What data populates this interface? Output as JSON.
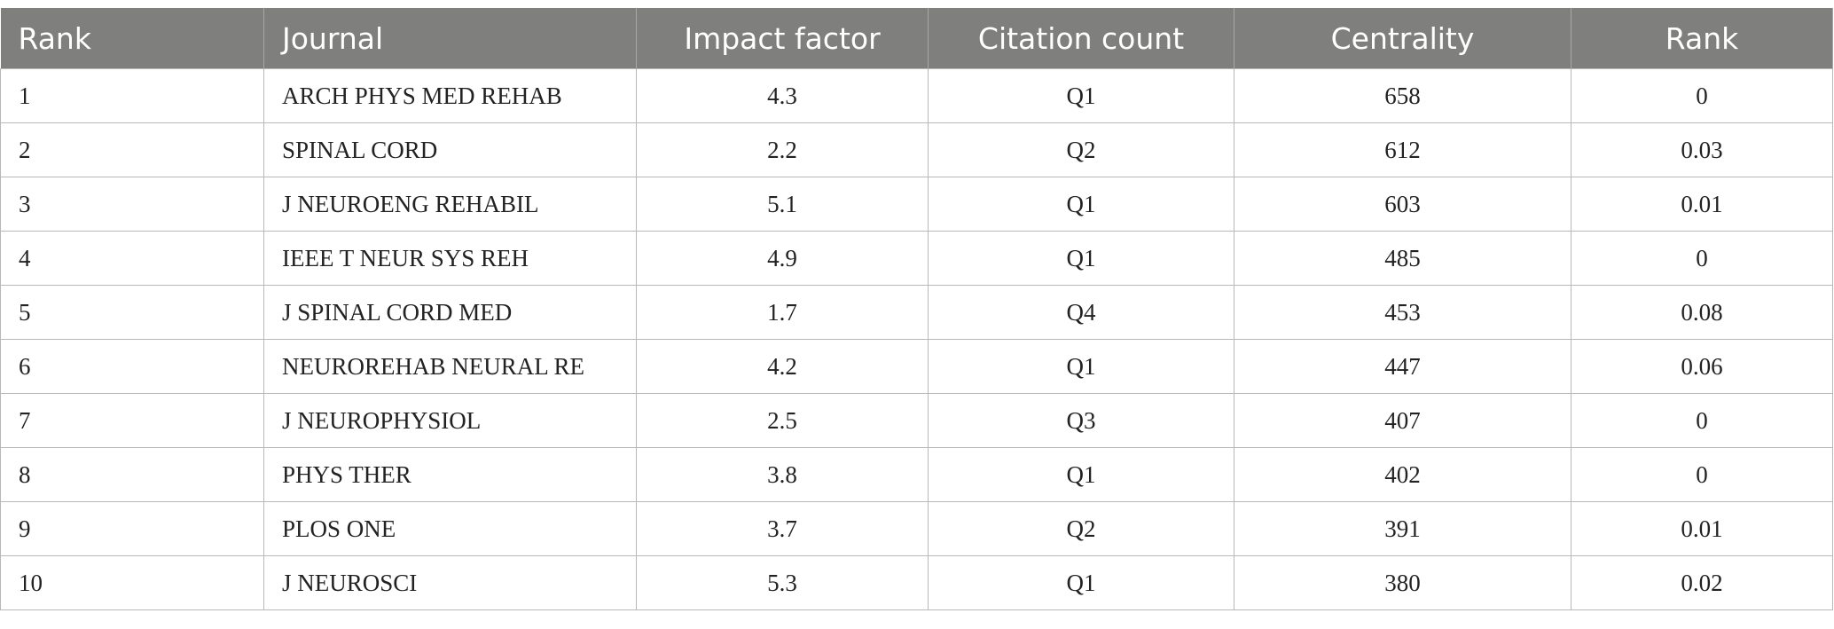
{
  "table": {
    "columns": [
      "Rank",
      "Journal",
      "Impact factor",
      "Citation count",
      "Centrality",
      "Rank"
    ],
    "rows": [
      [
        1,
        "ARCH PHYS MED REHAB",
        4.3,
        "Q1",
        658,
        0
      ],
      [
        2,
        "SPINAL CORD",
        2.2,
        "Q2",
        612,
        0.03
      ],
      [
        3,
        "J NEUROENG REHABIL",
        5.1,
        "Q1",
        603,
        0.01
      ],
      [
        4,
        "IEEE T NEUR SYS REH",
        4.9,
        "Q1",
        485,
        0
      ],
      [
        5,
        "J SPINAL CORD MED",
        1.7,
        "Q4",
        453,
        0.08
      ],
      [
        6,
        "NEUROREHAB NEURAL RE",
        4.2,
        "Q1",
        447,
        0.06
      ],
      [
        7,
        "J NEUROPHYSIOL",
        2.5,
        "Q3",
        407,
        0
      ],
      [
        8,
        "PHYS THER",
        3.8,
        "Q1",
        402,
        0
      ],
      [
        9,
        "PLOS ONE",
        3.7,
        "Q2",
        391,
        0.01
      ],
      [
        10,
        "J NEUROSCI",
        5.3,
        "Q1",
        380,
        0.02
      ]
    ]
  }
}
